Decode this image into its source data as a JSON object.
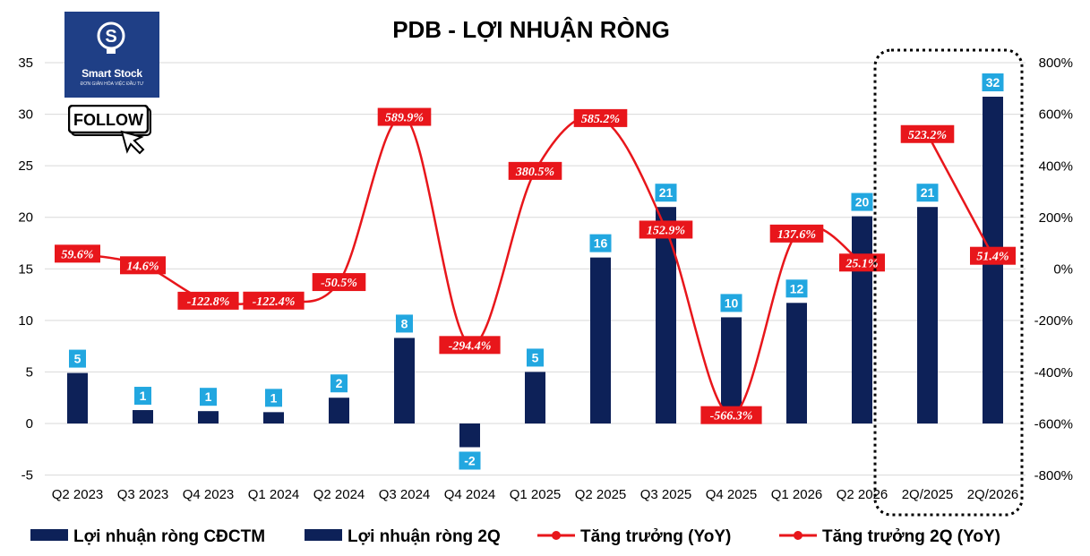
{
  "chart_data": {
    "type": "bar",
    "title": "PDB - LỢI NHUẬN RÒNG",
    "categories": [
      "Q2 2023",
      "Q3 2023",
      "Q4 2023",
      "Q1 2024",
      "Q2 2024",
      "Q3 2024",
      "Q4 2024",
      "Q1 2025",
      "Q2 2025",
      "Q3 2025",
      "Q4 2025",
      "Q1 2026",
      "Q2 2026",
      "2Q/2025",
      "2Q/2026"
    ],
    "y_left": {
      "min": -5,
      "max": 35,
      "ticks": [
        -5,
        0,
        5,
        10,
        15,
        20,
        25,
        30,
        35
      ]
    },
    "y_right": {
      "min": -800,
      "max": 800,
      "ticks": [
        "-800%",
        "-600%",
        "-400%",
        "-200%",
        "0%",
        "200%",
        "400%",
        "600%",
        "800%"
      ]
    },
    "series": [
      {
        "name": "Lợi nhuận ròng CĐCTM",
        "kind": "bar",
        "axis": "left",
        "color": "#0d2158",
        "values": [
          4.9,
          1.3,
          1.2,
          1.1,
          2.5,
          8.3,
          -2.3,
          5.0,
          16.1,
          21.0,
          10.3,
          11.7,
          20.1,
          null,
          null
        ],
        "labels": [
          "5",
          "1",
          "1",
          "1",
          "2",
          "8",
          "-2",
          "5",
          "16",
          "21",
          "10",
          "12",
          "20",
          null,
          null
        ]
      },
      {
        "name": "Lợi nhuận ròng 2Q",
        "kind": "bar",
        "axis": "left",
        "color": "#0d2158",
        "values": [
          null,
          null,
          null,
          null,
          null,
          null,
          null,
          null,
          null,
          null,
          null,
          null,
          null,
          21.0,
          31.7
        ],
        "labels": [
          null,
          null,
          null,
          null,
          null,
          null,
          null,
          null,
          null,
          null,
          null,
          null,
          null,
          "21",
          "32"
        ]
      },
      {
        "name": "Tăng trưởng (YoY)",
        "kind": "line",
        "axis": "right",
        "color": "#e8161b",
        "values": [
          59.6,
          14.6,
          -122.8,
          -122.4,
          -50.5,
          589.9,
          -294.4,
          380.5,
          585.2,
          152.9,
          -566.3,
          137.6,
          25.1,
          null,
          null
        ],
        "labels": [
          "59.6%",
          "14.6%",
          "-122.8%",
          "-122.4%",
          "-50.5%",
          "589.9%",
          "-294.4%",
          "380.5%",
          "585.2%",
          "152.9%",
          "-566.3%",
          "137.6%",
          "25.1%",
          null,
          null
        ]
      },
      {
        "name": "Tăng trưởng 2Q (YoY)",
        "kind": "line",
        "axis": "right",
        "color": "#e8161b",
        "values": [
          null,
          null,
          null,
          null,
          null,
          null,
          null,
          null,
          null,
          null,
          null,
          null,
          null,
          523.2,
          51.4
        ],
        "labels": [
          null,
          null,
          null,
          null,
          null,
          null,
          null,
          null,
          null,
          null,
          null,
          null,
          null,
          "523.2%",
          "51.4%"
        ]
      }
    ],
    "grid": true,
    "legend_position": "bottom"
  },
  "logo": {
    "name": "Smart Stock",
    "tagline": "ĐƠN GIẢN HÓA VIỆC ĐẦU TƯ",
    "button": "FOLLOW"
  },
  "colors": {
    "bar": "#0d2158",
    "line": "#e8161b",
    "bar_label_bg": "#22a7e0",
    "grid": "#d9d9d9",
    "logo_bg": "#1f3f86"
  }
}
